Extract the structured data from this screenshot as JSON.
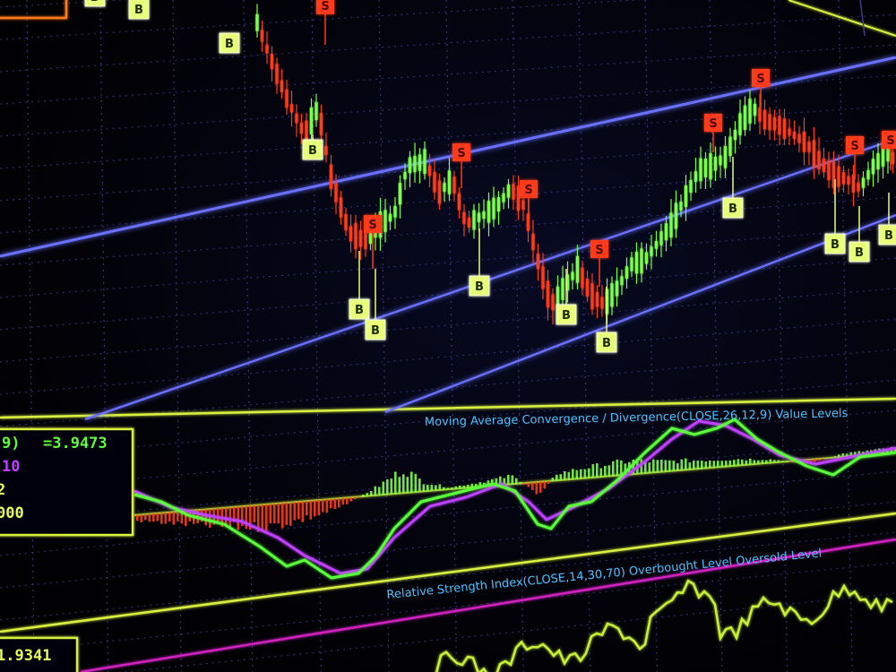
{
  "colors": {
    "background": "#03030c",
    "grid": "#3a3f8a",
    "trend_line": "#6a70ff",
    "candle_up": "#7cff4a",
    "candle_down": "#ff3b1a",
    "buy_marker": "#e8ff7a",
    "sell_marker": "#ff3b1a",
    "macd_line": "#5cff3a",
    "signal_line": "#c040ff",
    "panel_separator": "#d8f040",
    "panel_title": "#4fc3ff",
    "rsi_line": "#c8f03a",
    "rsi_level_line": "#d020c0",
    "legend_green": "#5cff3a",
    "legend_magenta": "#c040ff",
    "legend_yellow": "#e8ff5a"
  },
  "chart_data": [
    {
      "type": "candlestick",
      "panel": "price",
      "buy_marker_label": "B",
      "sell_marker_label": "S",
      "buy_markers": 14,
      "sell_markers": 9,
      "trend_lines": 3
    },
    {
      "type": "bar+line",
      "panel": "macd",
      "title": "Moving Average Convergence / Divergence(CLOSE,26,12,9) Value Levels",
      "series": [
        {
          "name": "MACD",
          "color": "#5cff3a"
        },
        {
          "name": "Signal",
          "color": "#c040ff"
        },
        {
          "name": "Histogram",
          "color": "#7cff4a"
        }
      ],
      "legend": {
        "period_fragment": "9)",
        "value": "=3.9473",
        "line2": "10",
        "line3": "2",
        "line4": "000"
      }
    },
    {
      "type": "line",
      "panel": "rsi",
      "title": "Relative Strength Index(CLOSE,14,30,70) Overbought Level Oversold Level",
      "series": [
        {
          "name": "RSI",
          "color": "#c8f03a"
        }
      ],
      "legend": {
        "value": "1.9341"
      }
    }
  ]
}
